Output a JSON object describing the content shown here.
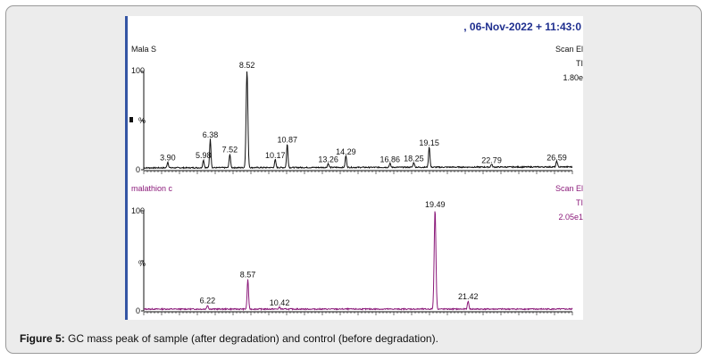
{
  "header": {
    "timestamp": ", 06-Nov-2022 + 11:43:0"
  },
  "caption": {
    "label": "Figure 5:",
    "text": " GC mass peak of sample (after degradation) and control (before degradation)."
  },
  "colors": {
    "sample": "#111111",
    "control": "#8b1a7a",
    "header": "#1f2f8f",
    "frame_accent": "#3455a4"
  },
  "chart_data": [
    {
      "type": "line",
      "panel": "sample",
      "sample_label": "Mala S",
      "right_labels": [
        "Scan El",
        "TI",
        "1.80e"
      ],
      "y_ticks": [
        "100",
        "%",
        "0"
      ],
      "xlim": [
        2.5,
        27.5
      ],
      "ylim": [
        0,
        100
      ],
      "peaks": [
        {
          "rt": 3.9,
          "label": "3.90",
          "intensity": 6
        },
        {
          "rt": 5.98,
          "label": "5.98",
          "intensity": 8
        },
        {
          "rt": 6.38,
          "label": "6.38",
          "intensity": 29
        },
        {
          "rt": 7.52,
          "label": "7.52",
          "intensity": 14
        },
        {
          "rt": 8.52,
          "label": "8.52",
          "intensity": 100
        },
        {
          "rt": 10.17,
          "label": "10.17",
          "intensity": 8
        },
        {
          "rt": 10.87,
          "label": "10.87",
          "intensity": 24
        },
        {
          "rt": 13.26,
          "label": "13.26",
          "intensity": 4
        },
        {
          "rt": 14.29,
          "label": "14.29",
          "intensity": 12
        },
        {
          "rt": 16.86,
          "label": "16.86",
          "intensity": 4
        },
        {
          "rt": 18.25,
          "label": "18.25",
          "intensity": 5
        },
        {
          "rt": 19.15,
          "label": "19.15",
          "intensity": 21
        },
        {
          "rt": 22.79,
          "label": "22.79",
          "intensity": 3
        },
        {
          "rt": 26.59,
          "label": "26.59",
          "intensity": 6
        }
      ]
    },
    {
      "type": "line",
      "panel": "control",
      "sample_label": "malathion c",
      "right_labels": [
        "Scan El",
        "TI",
        "2.05e1"
      ],
      "y_ticks": [
        "100",
        "%",
        "0"
      ],
      "xlim": [
        2.5,
        27.5
      ],
      "ylim": [
        0,
        100
      ],
      "peaks": [
        {
          "rt": 6.22,
          "label": "6.22",
          "intensity": 4
        },
        {
          "rt": 8.57,
          "label": "8.57",
          "intensity": 30
        },
        {
          "rt": 10.42,
          "label": "10.42",
          "intensity": 2
        },
        {
          "rt": 19.49,
          "label": "19.49",
          "intensity": 100
        },
        {
          "rt": 21.42,
          "label": "21.42",
          "intensity": 8
        }
      ]
    }
  ]
}
